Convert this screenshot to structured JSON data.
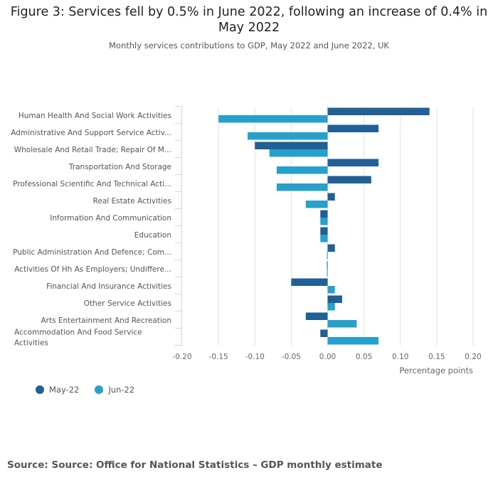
{
  "header": {
    "title": "Figure 3: Services fell by 0.5% in June 2022, following an increase of 0.4% in May 2022",
    "subtitle": "Monthly services contributions to GDP, May 2022 and June 2022, UK"
  },
  "source": "Source: Source: Office for National Statistics – GDP monthly estimate",
  "chart_data": {
    "type": "bar",
    "orientation": "horizontal",
    "title": "Figure 3: Services fell by 0.5% in June 2022, following an increase of 0.4% in May 2022",
    "subtitle": "Monthly services contributions to GDP, May 2022 and June 2022, UK",
    "xlabel": "Percentage points",
    "ylabel": "",
    "xlim": [
      -0.2,
      0.2
    ],
    "xticks": [
      "-0.20",
      "-0.15",
      "-0.10",
      "-0.05",
      "0.00",
      "0.05",
      "0.10",
      "0.15",
      "0.20"
    ],
    "xtick_values": [
      -0.2,
      -0.15,
      -0.1,
      -0.05,
      0,
      0.05,
      0.1,
      0.15,
      0.2
    ],
    "grid": true,
    "legend_position": "bottom-left",
    "categories": [
      [
        "Human Health And Social Work Activities"
      ],
      [
        "Administrative And Support Service Activ..."
      ],
      [
        "Wholesale And Retail Trade; Repair Of M..."
      ],
      [
        "Transportation And Storage"
      ],
      [
        "Professional Scientific And Technical Acti..."
      ],
      [
        "Real Estate Activities"
      ],
      [
        "Information And Communication"
      ],
      [
        "Education"
      ],
      [
        "Public Administration And Defence; Com..."
      ],
      [
        "Activities Of Hh As Employers; Undiffere..."
      ],
      [
        "Financial And Insurance Activities"
      ],
      [
        "Other Service Activities"
      ],
      [
        "Arts Entertainment And Recreation"
      ],
      [
        "Accommodation And Food Service",
        "Activities"
      ]
    ],
    "series": [
      {
        "name": "May-22",
        "color": "#206095",
        "values": [
          0.14,
          0.07,
          -0.1,
          0.07,
          0.06,
          0.01,
          -0.01,
          -0.01,
          0.01,
          -0.001,
          -0.05,
          0.02,
          -0.03,
          -0.01
        ]
      },
      {
        "name": "Jun-22",
        "color": "#27a0cc",
        "values": [
          -0.15,
          -0.11,
          -0.08,
          -0.07,
          -0.07,
          -0.03,
          -0.01,
          -0.01,
          -0.001,
          -0.001,
          0.01,
          0.01,
          0.04,
          0.07
        ]
      }
    ]
  },
  "legend": [
    {
      "label": "May-22",
      "color": "#206095"
    },
    {
      "label": "Jun-22",
      "color": "#27a0cc"
    }
  ]
}
